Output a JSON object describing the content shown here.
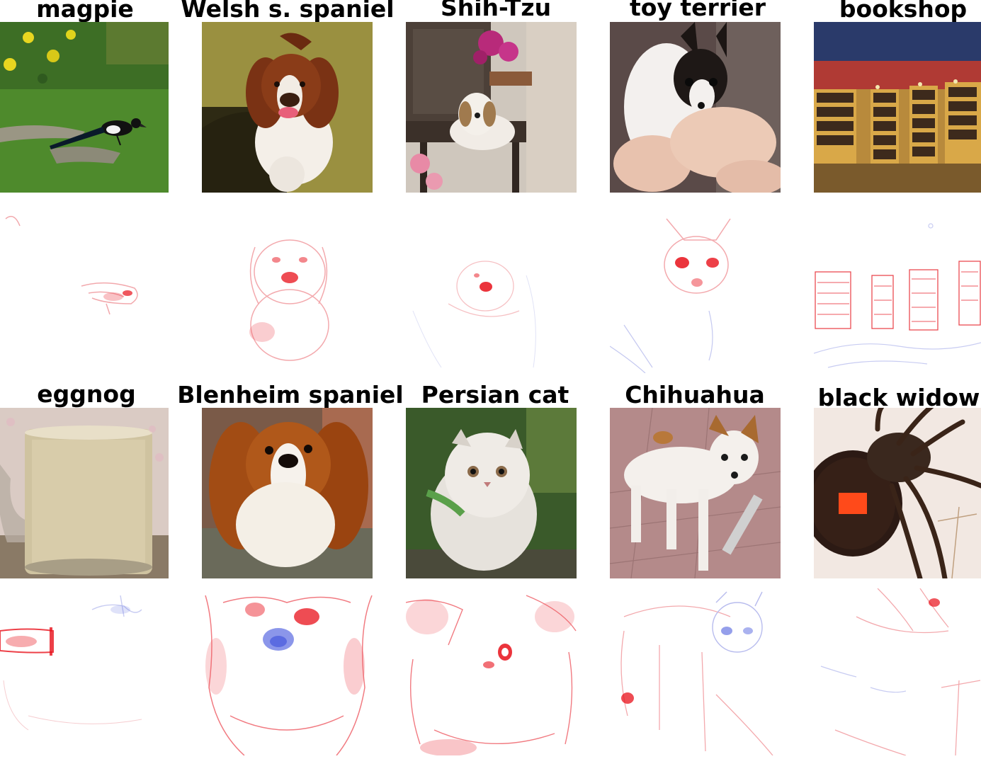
{
  "figure": {
    "panels": [
      {
        "label": "magpie"
      },
      {
        "label": "Welsh s. spaniel"
      },
      {
        "label": "Shih-Tzu"
      },
      {
        "label": "toy terrier"
      },
      {
        "label": "bookshop"
      },
      {
        "label": "eggnog"
      },
      {
        "label": "Blenheim spaniel"
      },
      {
        "label": "Persian cat"
      },
      {
        "label": "Chihuahua"
      },
      {
        "label": "black widow"
      }
    ],
    "colors": {
      "positive_relevance": "#e8101a",
      "negative_relevance": "#2b3fd8",
      "neutral_background": "#ffffff"
    }
  }
}
